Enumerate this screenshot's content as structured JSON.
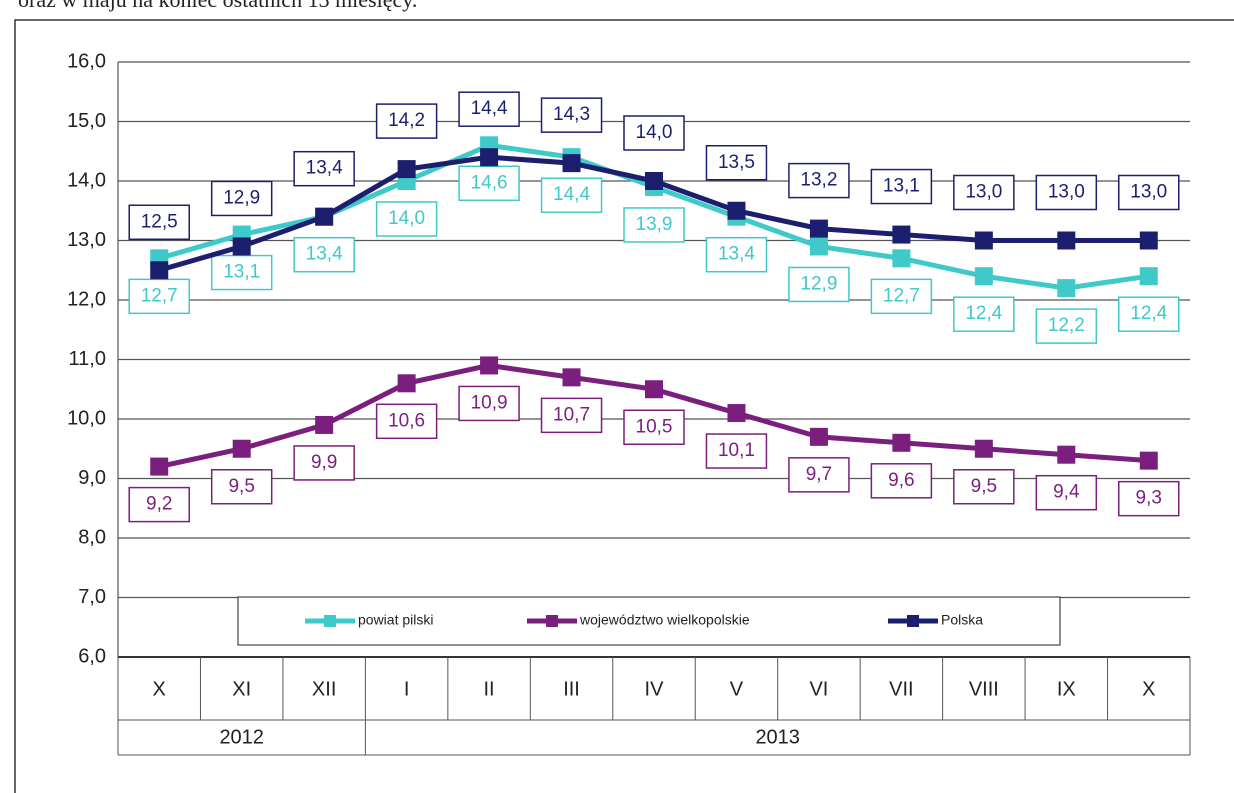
{
  "intro_text": "oraz w maju na koniec ostatnich 13 miesięcy.",
  "chart_data": {
    "type": "line",
    "categories": [
      "X",
      "XI",
      "XII",
      "I",
      "II",
      "III",
      "IV",
      "V",
      "VI",
      "VII",
      "VIII",
      "IX",
      "X"
    ],
    "x_groups": [
      {
        "label": "2012",
        "span": 3
      },
      {
        "label": "2013",
        "span": 10
      }
    ],
    "ylim": [
      6,
      16
    ],
    "yticks": [
      {
        "value": 6,
        "label": "6,0"
      },
      {
        "value": 7,
        "label": "7,0"
      },
      {
        "value": 8,
        "label": "8,0"
      },
      {
        "value": 9,
        "label": "9,0"
      },
      {
        "value": 10,
        "label": "10,0"
      },
      {
        "value": 11,
        "label": "11,0"
      },
      {
        "value": 12,
        "label": "12,0"
      },
      {
        "value": 13,
        "label": "13,0"
      },
      {
        "value": 14,
        "label": "14,0"
      },
      {
        "value": 15,
        "label": "15,0"
      },
      {
        "value": 16,
        "label": "16,0"
      }
    ],
    "grid": true,
    "legend": "bottom",
    "series": [
      {
        "name": "powiat pilski",
        "color": "#3fc9c9",
        "label_position": "below",
        "values": [
          12.7,
          13.1,
          13.4,
          14.0,
          14.6,
          14.4,
          13.9,
          13.4,
          12.9,
          12.7,
          12.4,
          12.2,
          12.4
        ],
        "value_labels": [
          "12,7",
          "13,1",
          "13,4",
          "14,0",
          "14,6",
          "14,4",
          "13,9",
          "13,4",
          "12,9",
          "12,7",
          "12,4",
          "12,2",
          "12,4"
        ]
      },
      {
        "name": "województwo wielkopolskie",
        "color": "#7a1f7e",
        "label_position": "below",
        "values": [
          9.2,
          9.5,
          9.9,
          10.6,
          10.9,
          10.7,
          10.5,
          10.1,
          9.7,
          9.6,
          9.5,
          9.4,
          9.3
        ],
        "value_labels": [
          "9,2",
          "9,5",
          "9,9",
          "10,6",
          "10,9",
          "10,7",
          "10,5",
          "10,1",
          "9,7",
          "9,6",
          "9,5",
          "9,4",
          "9,3"
        ]
      },
      {
        "name": "Polska",
        "color": "#1c1f6e",
        "label_position": "above",
        "values": [
          12.5,
          12.9,
          13.4,
          14.2,
          14.4,
          14.3,
          14.0,
          13.5,
          13.2,
          13.1,
          13.0,
          13.0,
          13.0
        ],
        "value_labels": [
          "12,5",
          "12,9",
          "13,4",
          "14,2",
          "14,4",
          "14,3",
          "14,0",
          "13,5",
          "13,2",
          "13,1",
          "13,0",
          "13,0",
          "13,0"
        ]
      }
    ]
  }
}
